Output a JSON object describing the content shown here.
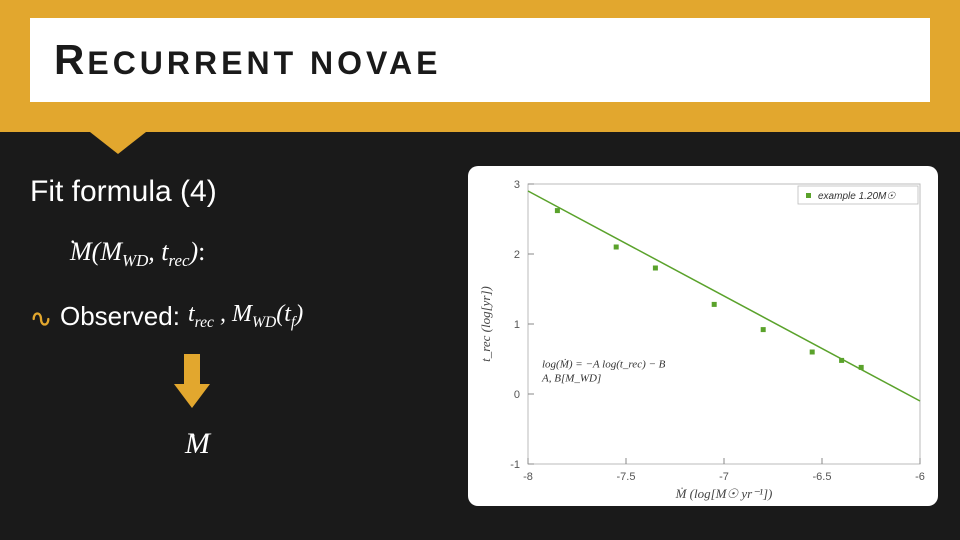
{
  "title": {
    "first_cap": "R",
    "rest": "ECURRENT NOVAE"
  },
  "left": {
    "fit_formula": "Fit formula (4)",
    "mdot_func": "Ṁ(M_WD, t_rec):",
    "observed_label": "Observed:",
    "observed_math": "t_rec , M_WD(t_f)",
    "result": "Ṁ"
  },
  "colors": {
    "accent": "#e2a72e",
    "slide_bg": "#1a1a1a",
    "chart_bg": "#ffffff",
    "line": "#5aa22b",
    "marker": "#5aa22b",
    "axis": "#888888",
    "box": "#bbbbbb"
  },
  "chart": {
    "type": "scatter+line",
    "xlabel": "Ṁ (log[M☉ yr⁻¹])",
    "ylabel": "t_rec (log[yr])",
    "xlim": [
      -8,
      -6
    ],
    "ylim": [
      -1,
      3
    ],
    "xticks": [
      -8,
      -7.5,
      -7,
      -6.5,
      -6
    ],
    "yticks": [
      -1,
      0,
      1,
      2,
      3
    ],
    "legend": {
      "label": "example 1.20M☉",
      "marker_color": "#5aa22b"
    },
    "fit_line": {
      "x1": -8,
      "y1": 2.9,
      "x2": -6,
      "y2": -0.1,
      "color": "#5aa22b",
      "width": 1.5
    },
    "points": [
      {
        "x": -7.85,
        "y": 2.62
      },
      {
        "x": -7.55,
        "y": 2.1
      },
      {
        "x": -7.35,
        "y": 1.8
      },
      {
        "x": -7.05,
        "y": 1.28
      },
      {
        "x": -6.8,
        "y": 0.92
      },
      {
        "x": -6.55,
        "y": 0.6
      },
      {
        "x": -6.4,
        "y": 0.48
      },
      {
        "x": -6.3,
        "y": 0.38
      }
    ],
    "formula_lines": [
      "log(Ṁ) = −A log(t_rec) − B",
      "A, B[M_WD]"
    ]
  }
}
